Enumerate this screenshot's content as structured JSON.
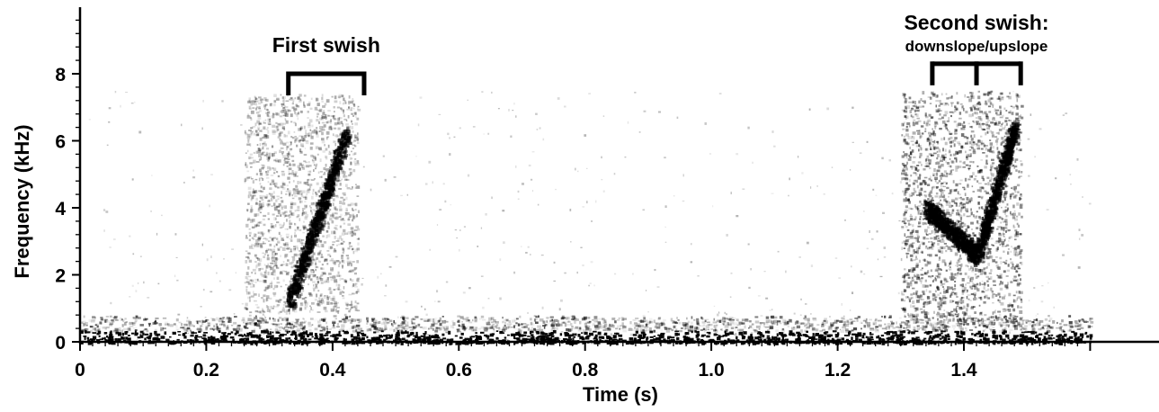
{
  "chart_data": {
    "type": "heatmap",
    "title": "",
    "xlabel": "Time (s)",
    "ylabel": "Frequency (kHz)",
    "xlim": [
      0,
      1.6
    ],
    "ylim": [
      0,
      9.8
    ],
    "x_ticks": [
      {
        "value": 0,
        "label": "0"
      },
      {
        "value": 0.2,
        "label": "0.2"
      },
      {
        "value": 0.4,
        "label": "0.4"
      },
      {
        "value": 0.6,
        "label": "0.6"
      },
      {
        "value": 0.8,
        "label": "0.8"
      },
      {
        "value": 1.0,
        "label": "1.0"
      },
      {
        "value": 1.2,
        "label": "1.2"
      },
      {
        "value": 1.4,
        "label": "1.4"
      }
    ],
    "y_ticks": [
      {
        "value": 0,
        "label": "0"
      },
      {
        "value": 2,
        "label": "2"
      },
      {
        "value": 4,
        "label": "4"
      },
      {
        "value": 6,
        "label": "6"
      },
      {
        "value": 8,
        "label": "8"
      }
    ],
    "grid": false,
    "colors": {
      "ink": "#000000",
      "background": "#ffffff"
    },
    "energy_regions": [
      {
        "kind": "baseline",
        "t_start": 0.0,
        "t_end": 1.6,
        "f_low": 0.0,
        "f_high": 0.35,
        "intensity": 0.95
      },
      {
        "kind": "haze",
        "t_start": 0.26,
        "t_end": 0.44,
        "f_low": 0.9,
        "f_high": 7.4,
        "intensity": 0.3
      },
      {
        "kind": "streak",
        "t_start": 0.33,
        "t_end": 0.42,
        "f_low": 1.2,
        "f_high": 6.2,
        "intensity": 0.85
      },
      {
        "kind": "haze",
        "t_start": 1.3,
        "t_end": 1.49,
        "f_low": 0.5,
        "f_high": 7.5,
        "intensity": 0.45
      },
      {
        "kind": "streak",
        "t_start": 1.34,
        "t_end": 1.42,
        "f_low": 2.6,
        "f_high": 4.0,
        "intensity": 0.8
      },
      {
        "kind": "streak",
        "t_start": 1.42,
        "t_end": 1.48,
        "f_low": 2.6,
        "f_high": 6.5,
        "intensity": 0.8
      }
    ],
    "annotations": [
      {
        "text": "First swish",
        "subtext": "",
        "brackets": [
          [
            0.33,
            0.45
          ]
        ],
        "f_top": 8.0
      },
      {
        "text": "Second swish:",
        "subtext": "downslope/upslope",
        "brackets": [
          [
            1.35,
            1.42
          ],
          [
            1.42,
            1.49
          ]
        ],
        "f_top": 8.3
      }
    ]
  }
}
